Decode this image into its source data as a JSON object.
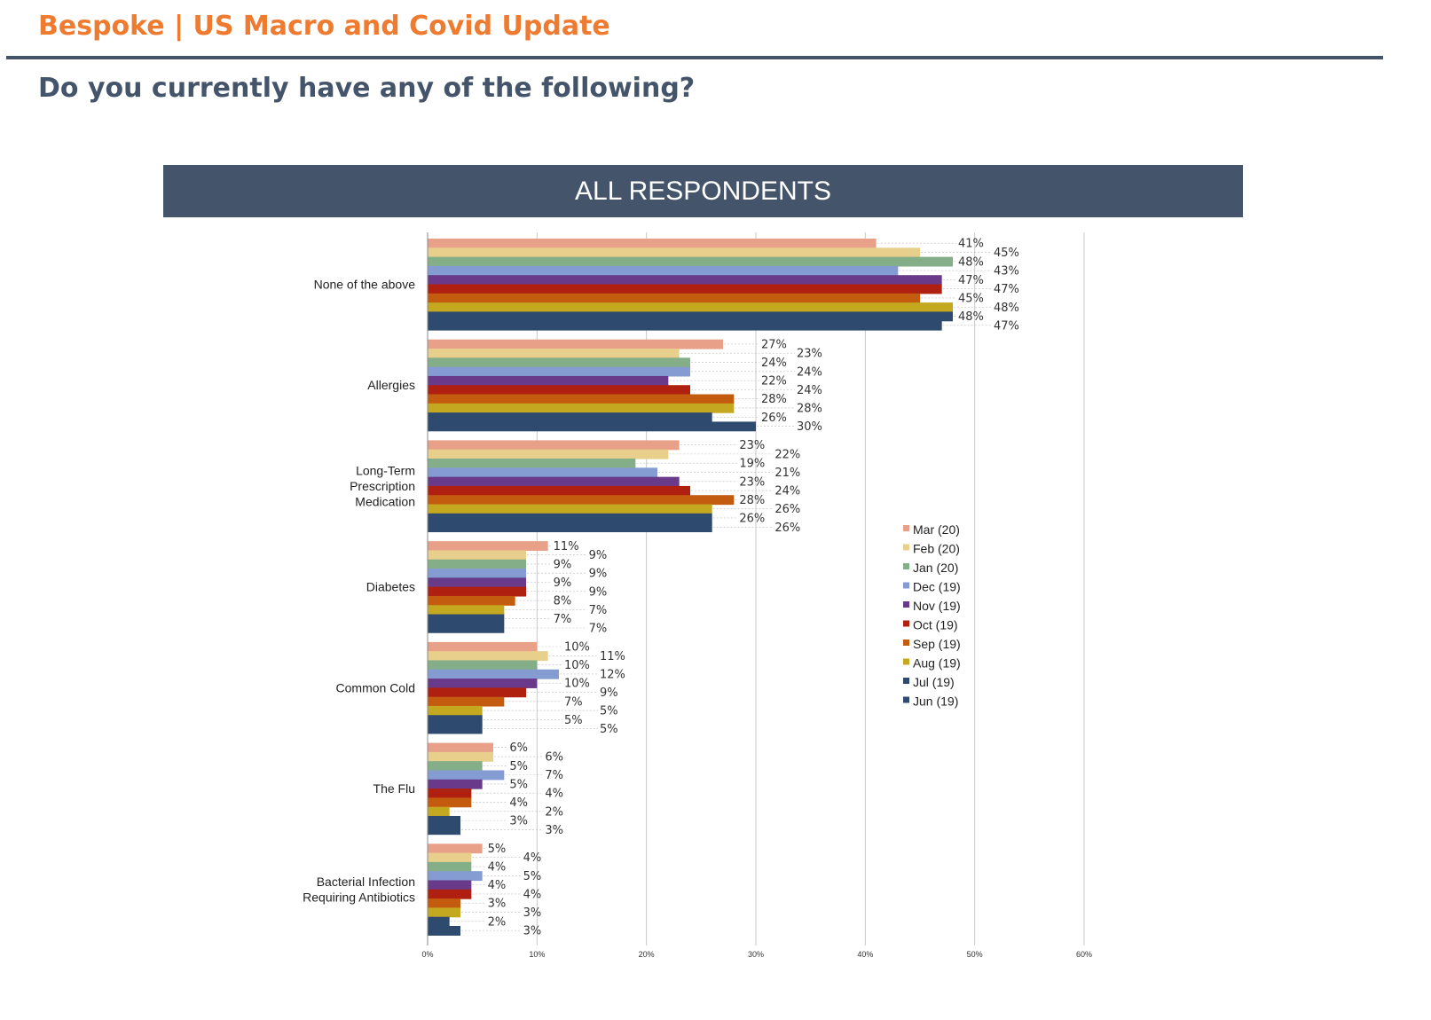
{
  "header": {
    "brand": "Bespoke | US Macro and Covid Update",
    "question": "Do you currently have any of the following?"
  },
  "chart_data": {
    "type": "bar",
    "orientation": "horizontal",
    "title": "ALL RESPONDENTS",
    "categories": [
      "None of the above",
      "Allergies",
      "Long-Term Prescription Medication",
      "Diabetes",
      "Common Cold",
      "The Flu",
      "Bacterial Infection Requiring Antibiotics"
    ],
    "category_lines": [
      [
        "None of the above"
      ],
      [
        "Allergies"
      ],
      [
        "Long-Term",
        "Prescription",
        "Medication"
      ],
      [
        "Diabetes"
      ],
      [
        "Common Cold"
      ],
      [
        "The Flu"
      ],
      [
        "Bacterial Infection",
        "Requiring Antibiotics"
      ]
    ],
    "xlim": [
      0,
      60
    ],
    "xticks": [
      "0%",
      "10%",
      "20%",
      "30%",
      "40%",
      "50%",
      "60%"
    ],
    "grid": true,
    "legend_position": "right",
    "series": [
      {
        "name": "Mar (20)",
        "color": "#E8A088",
        "values": [
          41,
          27,
          23,
          11,
          10,
          6,
          5
        ]
      },
      {
        "name": "Feb (20)",
        "color": "#E8D08C",
        "values": [
          45,
          23,
          22,
          9,
          11,
          6,
          4
        ]
      },
      {
        "name": "Jan (20)",
        "color": "#84AE88",
        "values": [
          48,
          24,
          19,
          9,
          10,
          5,
          4
        ]
      },
      {
        "name": "Dec (19)",
        "color": "#849CD2",
        "values": [
          43,
          24,
          21,
          9,
          12,
          7,
          5
        ]
      },
      {
        "name": "Nov (19)",
        "color": "#6A3A8A",
        "values": [
          47,
          22,
          23,
          9,
          10,
          5,
          4
        ]
      },
      {
        "name": "Oct (19)",
        "color": "#B02010",
        "values": [
          47,
          24,
          24,
          9,
          9,
          4,
          4
        ]
      },
      {
        "name": "Sep (19)",
        "color": "#C45C10",
        "values": [
          45,
          28,
          28,
          8,
          7,
          4,
          3
        ]
      },
      {
        "name": "Aug (19)",
        "color": "#C4A820",
        "values": [
          48,
          28,
          26,
          7,
          5,
          2,
          3
        ]
      },
      {
        "name": "Jul (19)",
        "color": "#2E4A6E",
        "values": [
          48,
          26,
          26,
          7,
          5,
          3,
          2
        ]
      },
      {
        "name": "Jun (19)",
        "color": "#2E4A6E",
        "values": [
          47,
          30,
          26,
          7,
          5,
          3,
          3
        ]
      }
    ]
  }
}
